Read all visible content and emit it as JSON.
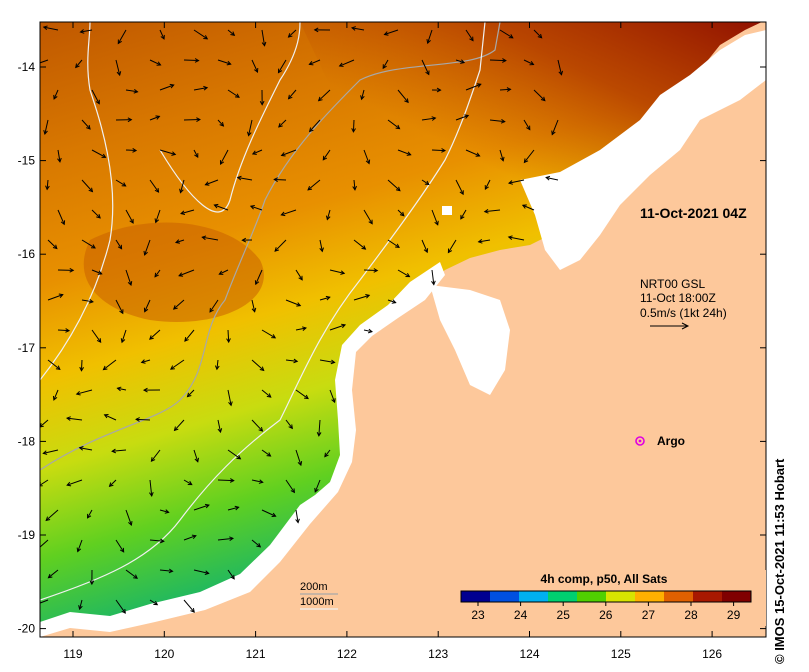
{
  "map": {
    "timestamp": "11-Oct-2021 04Z",
    "current_info": {
      "line1": "NRT00 GSL",
      "line2": "11-Oct 18:00Z",
      "line3": "0.5m/s (1kt 24h)"
    },
    "argo_label": "Argo",
    "isobaths": {
      "shallow": "200m",
      "deep": "1000m"
    },
    "colorbar": {
      "title": "4h comp, p50, All Sats",
      "ticks": [
        "23",
        "24",
        "25",
        "26",
        "27",
        "28",
        "29"
      ],
      "colors": [
        "#000090",
        "#0050e0",
        "#00b0f0",
        "#00d070",
        "#50d000",
        "#d8e400",
        "#ffb000",
        "#e06000",
        "#a81800",
        "#800000"
      ]
    },
    "axes": {
      "lon_ticks": [
        "119",
        "120",
        "121",
        "122",
        "123",
        "124",
        "125",
        "126"
      ],
      "lat_ticks": [
        "-14",
        "-15",
        "-16",
        "-17",
        "-18",
        "-19",
        "-20"
      ]
    },
    "credit": "© IMOS 15-Oct-2021 11:53 Hobart",
    "colors": {
      "land": "#fdc89b",
      "cloud": "#ffffff",
      "isobath_shallow": "#a8a8a8",
      "isobath_deep": "#f0f0f0",
      "argo": "#e000e0"
    }
  }
}
